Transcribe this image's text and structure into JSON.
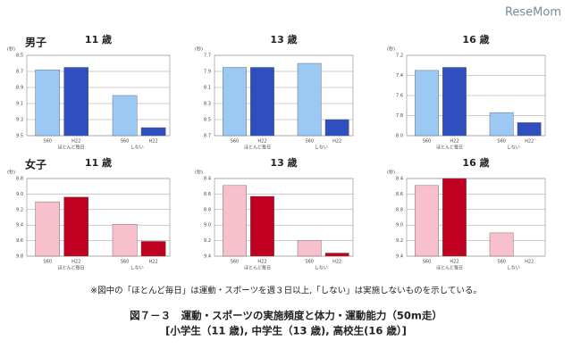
{
  "watermark": "ReseMom",
  "row_labels": [
    "男子",
    "女子"
  ],
  "note": "※図中の「ほとんど毎日」は運動・スポーツを週３日以上,「しない」は実施しないものを示している。",
  "caption": "図７－３　運動・スポーツの実施頻度と体力・運動能力（50m走）",
  "subcaption": "[小学生（11 歳), 中学生（13 歳), 高校生(16 歳）]",
  "chart_data": [
    {
      "type": "bar",
      "title": "11 歳",
      "y_label": "(秒)",
      "categories": [
        "S60",
        "H22",
        "S60",
        "H22"
      ],
      "groups": [
        "ほとんど毎日",
        "しない"
      ],
      "values": [
        8.68,
        8.65,
        9.0,
        9.4
      ],
      "colors": [
        "#9cc8f4",
        "#2f4fbf",
        "#9cc8f4",
        "#2f4fbf"
      ],
      "inverted": true,
      "ylim": [
        8.5,
        9.5
      ],
      "yticks": [
        8.5,
        8.7,
        8.9,
        9.1,
        9.3,
        9.5
      ]
    },
    {
      "type": "bar",
      "title": "13 歳",
      "y_label": "(秒)",
      "categories": [
        "S60",
        "H22",
        "S60",
        "H22"
      ],
      "groups": [
        "ほとんど毎日",
        "しない"
      ],
      "values": [
        7.85,
        7.85,
        7.8,
        8.5
      ],
      "colors": [
        "#9cc8f4",
        "#2f4fbf",
        "#9cc8f4",
        "#2f4fbf"
      ],
      "inverted": true,
      "ylim": [
        7.7,
        8.7
      ],
      "yticks": [
        7.7,
        7.9,
        8.1,
        8.3,
        8.5,
        8.7
      ]
    },
    {
      "type": "bar",
      "title": "16 歳",
      "y_label": "(秒)",
      "categories": [
        "S60",
        "H22",
        "S60",
        "H22"
      ],
      "groups": [
        "ほとんど毎日",
        "しない"
      ],
      "values": [
        7.35,
        7.32,
        7.77,
        7.87
      ],
      "colors": [
        "#9cc8f4",
        "#2f4fbf",
        "#9cc8f4",
        "#2f4fbf"
      ],
      "inverted": true,
      "ylim": [
        7.2,
        8.0
      ],
      "yticks": [
        7.2,
        7.4,
        7.6,
        7.8,
        {
          "value": 8,
          "label": "8.0"
        }
      ]
    },
    {
      "type": "bar",
      "title": "11 歳",
      "y_label": "(秒)",
      "categories": [
        "S60",
        "H22",
        "S60",
        "H22"
      ],
      "groups": [
        "ほとんど毎日",
        "しない"
      ],
      "values": [
        9.1,
        9.04,
        9.39,
        9.61
      ],
      "colors": [
        "#f8c0cc",
        "#c00020",
        "#f8c0cc",
        "#c00020"
      ],
      "inverted": true,
      "ylim": [
        8.8,
        9.8
      ],
      "yticks": [
        8.8,
        {
          "value": 9,
          "label": "9.0"
        },
        9.2,
        9.4,
        9.6,
        9.8
      ]
    },
    {
      "type": "bar",
      "title": "13 歳",
      "y_label": "(秒)",
      "categories": [
        "S60",
        "H22",
        "S60",
        "H22"
      ],
      "groups": [
        "ほとんど毎日",
        "しない"
      ],
      "values": [
        8.49,
        8.63,
        9.2,
        9.36
      ],
      "colors": [
        "#f8c0cc",
        "#c00020",
        "#f8c0cc",
        "#c00020"
      ],
      "inverted": true,
      "ylim": [
        8.4,
        9.4
      ],
      "yticks": [
        8.4,
        8.6,
        8.8,
        {
          "value": 9,
          "label": "9.0"
        },
        9.2,
        9.4
      ]
    },
    {
      "type": "bar",
      "title": "16 歳",
      "y_label": "(秒)",
      "categories": [
        "S60",
        "H22",
        "S60",
        "H22"
      ],
      "groups": [
        "ほとんど毎日",
        "しない"
      ],
      "values": [
        8.49,
        8.4,
        9.1,
        9.4
      ],
      "colors": [
        "#f8c0cc",
        "#c00020",
        "#f8c0cc",
        "#c00020"
      ],
      "inverted": true,
      "ylim": [
        8.4,
        9.4
      ],
      "yticks": [
        8.4,
        8.6,
        8.8,
        {
          "value": 9,
          "label": "9.0"
        },
        9.2,
        9.4
      ]
    }
  ]
}
